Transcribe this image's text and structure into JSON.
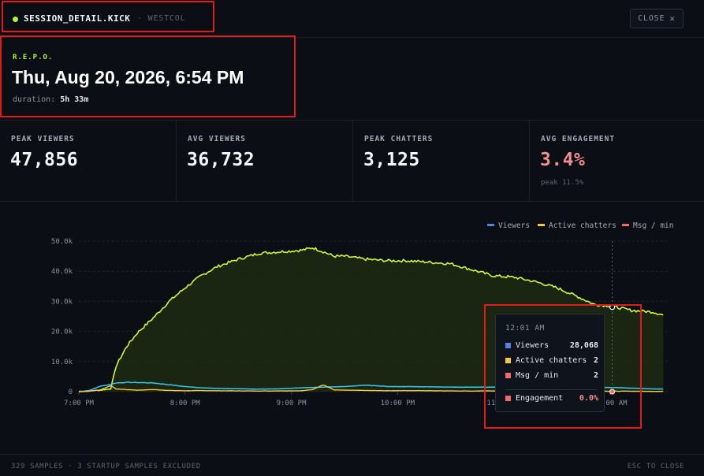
{
  "header": {
    "title": "SESSION_DETAIL.KICK",
    "subtitle": "· WESTCOL",
    "close_label": "CLOSE",
    "close_icon": "close-icon"
  },
  "session": {
    "game": "R.E.P.O.",
    "date": "Thu, Aug 20, 2026, 6:54 PM",
    "duration_label": "duration:",
    "duration_value": "5h 33m"
  },
  "stats": [
    {
      "label": "PEAK VIEWERS",
      "value": "47,856",
      "sub": ""
    },
    {
      "label": "AVG VIEWERS",
      "value": "36,732",
      "sub": ""
    },
    {
      "label": "PEAK CHATTERS",
      "value": "3,125",
      "sub": ""
    },
    {
      "label": "AVG ENGAGEMENT",
      "value": "3.4%",
      "sub": "peak 11.5%"
    }
  ],
  "colors": {
    "accent": "#b7f33a",
    "viewers": "#d2f53c",
    "chatters": "#f5c842",
    "chatters_cyan": "#36c8f0",
    "msgs": "#f06a6a",
    "engagement": "#f08f8f",
    "legend_viewers": "#5b7fe0",
    "legend_chatters": "#f5c842",
    "legend_msgs": "#f06a6a"
  },
  "chart_data": {
    "type": "line",
    "legend": [
      "Viewers",
      "Active chatters",
      "Msg / min"
    ],
    "legend_position": "top-right",
    "grid": true,
    "ylim": [
      0,
      50000
    ],
    "yticks": [
      "0",
      "10.0k",
      "20.0k",
      "30.0k",
      "40.0k",
      "50.0k"
    ],
    "xticks": [
      "7:00 PM",
      "8:00 PM",
      "9:00 PM",
      "10:00 PM",
      "11:00 PM",
      "12:00 AM"
    ],
    "x_hours": [
      0,
      0.1,
      0.2,
      0.3,
      0.35,
      0.45,
      0.55,
      0.7,
      0.85,
      1.0,
      1.15,
      1.3,
      1.5,
      1.7,
      1.9,
      2.1,
      2.2,
      2.3,
      2.4,
      2.5,
      2.7,
      2.9,
      3.1,
      3.3,
      3.5,
      3.7,
      3.9,
      4.1,
      4.3,
      4.5,
      4.7,
      4.85,
      5.0,
      5.2,
      5.4,
      5.5
    ],
    "series": [
      {
        "name": "Viewers",
        "values": [
          100,
          300,
          500,
          1000,
          8500,
          15000,
          19500,
          24500,
          30000,
          34500,
          38500,
          41500,
          44000,
          46000,
          46500,
          47000,
          47800,
          46500,
          45000,
          45000,
          44000,
          43500,
          43500,
          43000,
          42500,
          40500,
          38500,
          38000,
          36500,
          34500,
          31500,
          29000,
          28500,
          27000,
          26500,
          25500
        ]
      },
      {
        "name": "Active chatters",
        "values": [
          0,
          400,
          1800,
          2400,
          2900,
          3100,
          3050,
          2900,
          2300,
          1700,
          1300,
          1100,
          950,
          850,
          950,
          1300,
          1400,
          1550,
          1600,
          1700,
          2200,
          1700,
          1700,
          1600,
          1500,
          1500,
          1500,
          1500,
          1450,
          1450,
          1400,
          1350,
          1400,
          1200,
          900,
          900
        ]
      },
      {
        "name": "Msg / min",
        "values": [
          0,
          150,
          600,
          2000,
          900,
          700,
          500,
          700,
          400,
          300,
          350,
          300,
          250,
          200,
          250,
          300,
          700,
          2300,
          600,
          500,
          400,
          300,
          350,
          300,
          250,
          200,
          250,
          200,
          150,
          200,
          250,
          200,
          150,
          150,
          100,
          100
        ]
      }
    ]
  },
  "tooltip": {
    "time": "12:01 AM",
    "rows": [
      {
        "label": "Viewers",
        "value": "28,068",
        "color": "#5b7fe0"
      },
      {
        "label": "Active chatters",
        "value": "2",
        "color": "#f5c842"
      },
      {
        "label": "Msg / min",
        "value": "2",
        "color": "#f06a6a"
      }
    ],
    "engagement_label": "Engagement",
    "engagement_value": "0.0%"
  },
  "footer": {
    "left": "329 SAMPLES · 3 STARTUP SAMPLES EXCLUDED",
    "right": "ESC TO CLOSE"
  }
}
